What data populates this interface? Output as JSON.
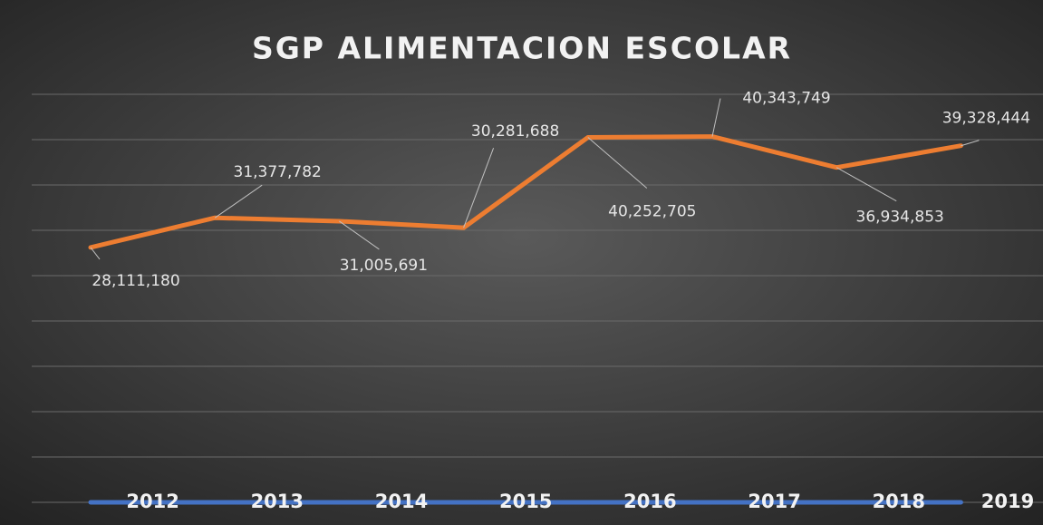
{
  "chart_data": {
    "type": "line",
    "title": "SGP ALIMENTACION ESCOLAR",
    "categories": [
      "2012",
      "2013",
      "2014",
      "2015",
      "2016",
      "2017",
      "2018",
      "2019"
    ],
    "series": [
      {
        "name": "SGP Alimentacion Escolar",
        "color": "#ed7d31",
        "values": [
          28111180,
          31377782,
          31005691,
          30281688,
          40252705,
          40343749,
          36934853,
          39328444
        ],
        "value_labels": [
          "28,111,180",
          "31,377,782",
          "31,005,691",
          "30,281,688",
          "40,252,705",
          "40,343,749",
          "36,934,853",
          "39,328,444"
        ]
      }
    ],
    "ylim": [
      0,
      45000000
    ],
    "yticks": [
      0,
      5000000,
      10000000,
      15000000,
      20000000,
      25000000,
      30000000,
      35000000,
      40000000,
      45000000
    ],
    "grid": true
  }
}
